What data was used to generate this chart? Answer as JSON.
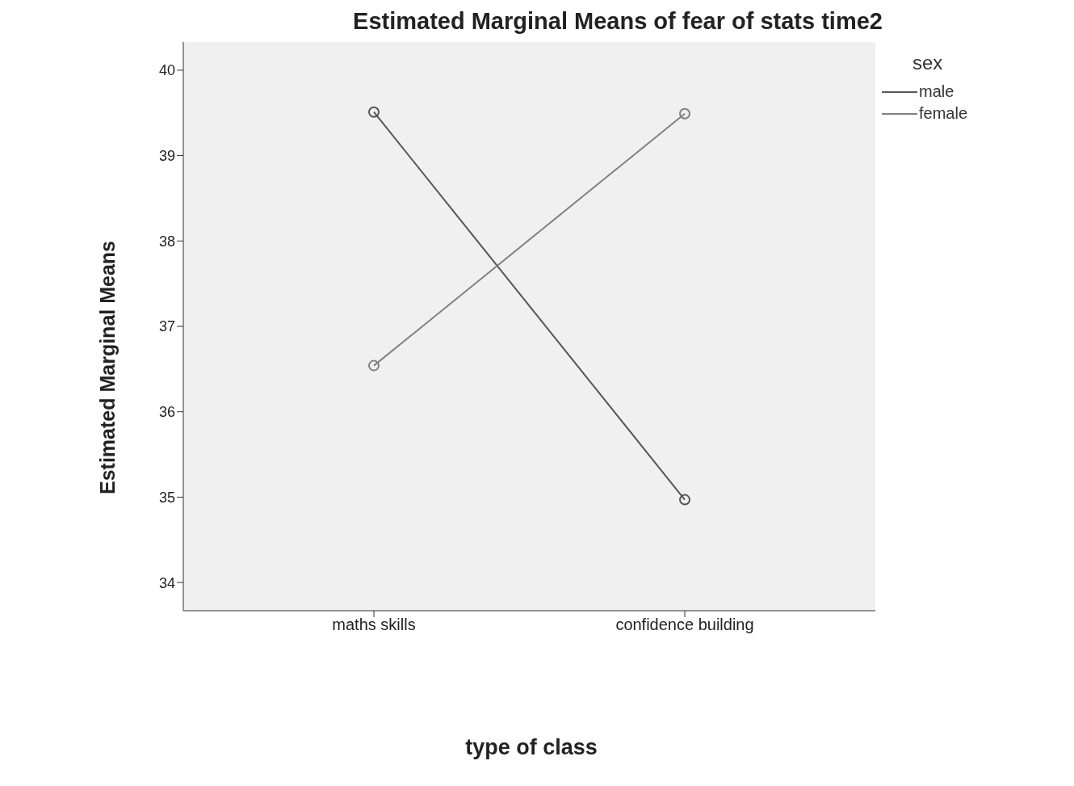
{
  "chart_data": {
    "type": "line",
    "title": "Estimated Marginal Means of fear of stats time2",
    "xlabel": "type of class",
    "ylabel": "Estimated Marginal Means",
    "legend_title": "sex",
    "categories": [
      "maths skills",
      "confidence building"
    ],
    "series": [
      {
        "name": "male",
        "color": "#555555",
        "values": [
          39.51,
          34.97
        ]
      },
      {
        "name": "female",
        "color": "#808080",
        "values": [
          36.54,
          39.49
        ]
      }
    ],
    "ylim": [
      33.67,
      40.33
    ],
    "yticks": [
      34,
      35,
      36,
      37,
      38,
      39,
      40
    ],
    "legend": "top right",
    "marker": "circle",
    "line_style": "solid"
  }
}
